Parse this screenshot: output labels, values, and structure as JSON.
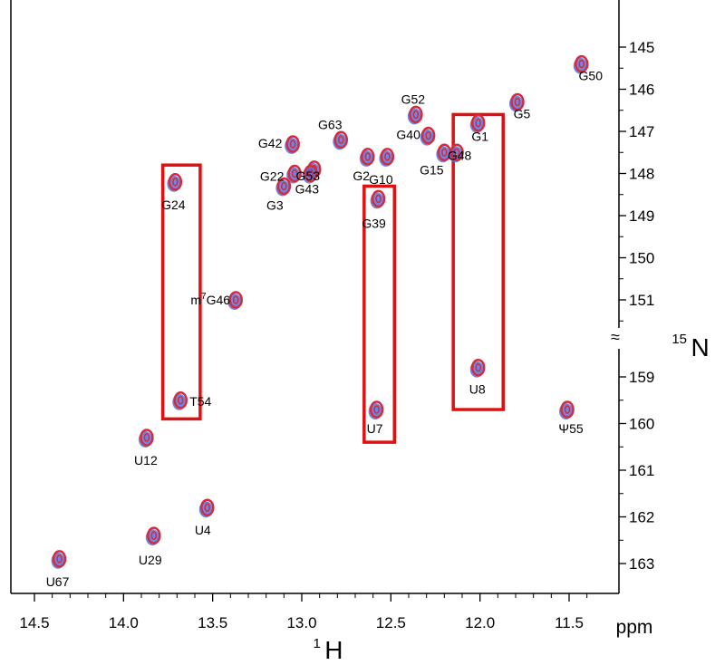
{
  "chart_data": {
    "type": "scatter",
    "x_axis": {
      "unit": "ppm",
      "title_sup": "1",
      "title_main": "H",
      "range": [
        14.5,
        11.3
      ],
      "reversed": true,
      "ticks": [
        14.5,
        14.0,
        13.5,
        13.0,
        12.5,
        12.0,
        11.5
      ],
      "tick_labels": [
        "14.5",
        "14.0",
        "13.5",
        "13.0",
        "12.5",
        "12.0",
        "11.5"
      ]
    },
    "y_axis": {
      "title_sup": "15",
      "title_main": "N",
      "break_marker": "≈",
      "segments": [
        {
          "range": [
            144.8,
            151.6
          ],
          "ticks": [
            145,
            146,
            147,
            148,
            149,
            150,
            151
          ]
        },
        {
          "range": [
            158.2,
            163.4
          ],
          "ticks": [
            159,
            160,
            161,
            162,
            163
          ]
        }
      ]
    },
    "series_colors": {
      "red": "#d42c3c",
      "blue": "#5472e0"
    },
    "peaks": [
      {
        "label": "G50",
        "x": 11.43,
        "y": 145.4
      },
      {
        "label": "G5",
        "x": 11.79,
        "y": 146.3
      },
      {
        "label": "G52",
        "x": 12.36,
        "y": 146.6
      },
      {
        "label": "G1",
        "x": 12.01,
        "y": 146.8
      },
      {
        "label": "G63",
        "x": 12.78,
        "y": 147.2
      },
      {
        "label": "G40",
        "x": 12.29,
        "y": 147.1
      },
      {
        "label": "G42",
        "x": 13.05,
        "y": 147.3
      },
      {
        "label": "G53",
        "x": 12.93,
        "y": 147.9
      },
      {
        "label": "G22",
        "x": 13.04,
        "y": 148.0
      },
      {
        "label": "G43",
        "x": 12.95,
        "y": 148.0
      },
      {
        "label": "G2",
        "x": 12.63,
        "y": 147.6
      },
      {
        "label": "G10",
        "x": 12.52,
        "y": 147.6
      },
      {
        "label": "G15",
        "x": 12.2,
        "y": 147.5
      },
      {
        "label": "G48",
        "x": 12.13,
        "y": 147.5
      },
      {
        "label": "G24",
        "x": 13.71,
        "y": 148.2
      },
      {
        "label": "G3",
        "x": 13.1,
        "y": 148.3
      },
      {
        "label": "G39",
        "x": 12.57,
        "y": 148.6
      },
      {
        "label": "m7G46",
        "x": 13.37,
        "y": 151.0
      },
      {
        "label": "U8",
        "x": 12.01,
        "y": 158.8
      },
      {
        "label": "T54",
        "x": 13.68,
        "y": 159.5
      },
      {
        "label": "U7",
        "x": 12.58,
        "y": 159.7
      },
      {
        "label": "Ψ55",
        "x": 11.51,
        "y": 159.7
      },
      {
        "label": "U12",
        "x": 13.87,
        "y": 160.3
      },
      {
        "label": "U4",
        "x": 13.53,
        "y": 161.8
      },
      {
        "label": "U29",
        "x": 13.83,
        "y": 162.4
      },
      {
        "label": "U67",
        "x": 14.36,
        "y": 162.9
      }
    ],
    "highlight_boxes": [
      {
        "x": [
          13.78,
          13.57
        ],
        "y": [
          147.8,
          159.9
        ],
        "color": "#e01010"
      },
      {
        "x": [
          12.65,
          12.48
        ],
        "y": [
          148.3,
          160.4
        ],
        "color": "#e01010"
      },
      {
        "x": [
          12.15,
          11.87
        ],
        "y": [
          146.6,
          159.7
        ],
        "color": "#e01010"
      }
    ]
  }
}
